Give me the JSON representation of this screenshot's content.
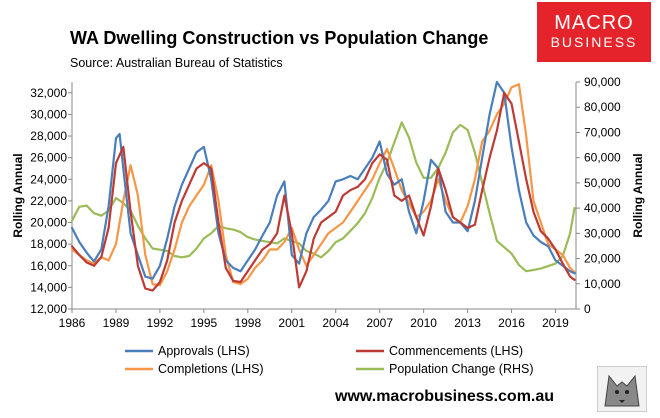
{
  "header": {
    "title": "WA Dwelling Construction vs Population Change",
    "source": "Source: Australian Bureau of Statistics"
  },
  "logo": {
    "line1": "MACRO",
    "line2": "BUSINESS"
  },
  "footer": {
    "url": "www.macrobusiness.com.au"
  },
  "colors": {
    "approvals": "#4a7ebb",
    "commencements": "#be3a34",
    "completions": "#f79646",
    "population": "#9bbb59",
    "logo_bg": "#e4232a"
  },
  "chart_data": {
    "type": "line",
    "title": "WA Dwelling Construction vs Population Change",
    "xlabel": "",
    "ylabel_left": "Rolling Annual",
    "ylabel_right": "Rolling Annual",
    "xlim": [
      1986,
      2020.4
    ],
    "ylim_left": [
      12000,
      33000
    ],
    "ylim_right": [
      0,
      90000
    ],
    "x_ticks": [
      "1986",
      "1989",
      "1992",
      "1995",
      "1998",
      "2001",
      "2004",
      "2007",
      "2010",
      "2013",
      "2016",
      "2019"
    ],
    "y_left_ticks": [
      "12,000",
      "14,000",
      "16,000",
      "18,000",
      "20,000",
      "22,000",
      "24,000",
      "26,000",
      "28,000",
      "30,000",
      "32,000"
    ],
    "y_right_ticks": [
      "0",
      "10,000",
      "20,000",
      "30,000",
      "40,000",
      "50,000",
      "60,000",
      "70,000",
      "80,000",
      "90,000"
    ],
    "grid": false,
    "legend_position": "bottom",
    "series": [
      {
        "name": "Approvals (LHS)",
        "axis": "left",
        "x": [
          1986,
          1986.5,
          1987,
          1987.5,
          1988,
          1988.5,
          1989,
          1989.25,
          1989.5,
          1990,
          1990.5,
          1991,
          1991.5,
          1992,
          1992.5,
          1993,
          1993.5,
          1994,
          1994.5,
          1995,
          1995.5,
          1996,
          1996.5,
          1997,
          1997.5,
          1998,
          1998.5,
          1999,
          1999.5,
          2000,
          2000.5,
          2001,
          2001.5,
          2002,
          2002.5,
          2003,
          2003.5,
          2004,
          2004.5,
          2005,
          2005.5,
          2006,
          2006.5,
          2007,
          2007.5,
          2008,
          2008.5,
          2009,
          2009.5,
          2010,
          2010.5,
          2011,
          2011.5,
          2012,
          2012.5,
          2013,
          2013.5,
          2014,
          2014.5,
          2015,
          2015.5,
          2016,
          2016.5,
          2017,
          2017.5,
          2018,
          2018.5,
          2019,
          2019.5,
          2020,
          2020.3
        ],
        "y": [
          19500,
          18200,
          17200,
          16400,
          17500,
          21500,
          27800,
          28200,
          25000,
          19000,
          17000,
          15000,
          14800,
          16000,
          18500,
          21500,
          23500,
          25000,
          26500,
          27000,
          24000,
          19000,
          16500,
          15800,
          15500,
          16500,
          17500,
          18800,
          20000,
          22500,
          23800,
          17000,
          16200,
          19000,
          20500,
          21200,
          22000,
          23800,
          24000,
          24300,
          24000,
          25000,
          26000,
          27500,
          24500,
          23500,
          24000,
          21000,
          19000,
          22000,
          25800,
          25000,
          21000,
          20000,
          20000,
          19200,
          22000,
          26000,
          30000,
          33000,
          32000,
          27000,
          23000,
          20000,
          18800,
          18200,
          17800,
          16500,
          16000,
          15500,
          15300
        ]
      },
      {
        "name": "Commencements (LHS)",
        "axis": "left",
        "x": [
          1986,
          1986.5,
          1987,
          1987.5,
          1988,
          1988.5,
          1989,
          1989.5,
          1990,
          1990.5,
          1991,
          1991.5,
          1992,
          1992.5,
          1993,
          1993.5,
          1994,
          1994.5,
          1995,
          1995.5,
          1996,
          1996.5,
          1997,
          1997.5,
          1998,
          1998.5,
          1999,
          1999.5,
          2000,
          2000.5,
          2001,
          2001.5,
          2002,
          2002.5,
          2003,
          2003.5,
          2004,
          2004.5,
          2005,
          2005.5,
          2006,
          2006.5,
          2007,
          2007.5,
          2008,
          2008.5,
          2009,
          2009.5,
          2010,
          2010.5,
          2011,
          2011.5,
          2012,
          2012.5,
          2013,
          2013.5,
          2014,
          2014.5,
          2015,
          2015.5,
          2016,
          2016.5,
          2017,
          2017.5,
          2018,
          2018.5,
          2019,
          2019.5,
          2020,
          2020.3
        ],
        "y": [
          17800,
          17000,
          16300,
          16000,
          16800,
          19500,
          25500,
          27000,
          21000,
          16000,
          13900,
          13700,
          14500,
          16500,
          20000,
          22000,
          23500,
          25000,
          25500,
          25000,
          20000,
          15800,
          14600,
          14500,
          15500,
          16500,
          17500,
          18000,
          19000,
          22500,
          19000,
          14000,
          15500,
          18500,
          20000,
          20500,
          21000,
          22500,
          23000,
          23300,
          24000,
          25500,
          26300,
          25800,
          22500,
          22000,
          22500,
          20500,
          18800,
          21500,
          25000,
          23000,
          20500,
          20000,
          19500,
          19800,
          23000,
          26000,
          28500,
          32000,
          31000,
          27500,
          24000,
          21000,
          19200,
          18500,
          17500,
          16200,
          15000,
          14700
        ]
      },
      {
        "name": "Completions (LHS)",
        "axis": "left",
        "x": [
          1986,
          1986.5,
          1987,
          1987.5,
          1988,
          1988.5,
          1989,
          1989.5,
          1990,
          1990.5,
          1991,
          1991.5,
          1992,
          1992.5,
          1993,
          1993.5,
          1994,
          1994.5,
          1995,
          1995.5,
          1996,
          1996.5,
          1997,
          1997.5,
          1998,
          1998.5,
          1999,
          1999.5,
          2000,
          2000.5,
          2001,
          2001.5,
          2002,
          2002.5,
          2003,
          2003.5,
          2004,
          2004.5,
          2005,
          2005.5,
          2006,
          2006.5,
          2007,
          2007.5,
          2008,
          2008.5,
          2009,
          2009.5,
          2010,
          2010.5,
          2011,
          2011.5,
          2012,
          2012.5,
          2013,
          2013.5,
          2014,
          2014.5,
          2015,
          2015.5,
          2016,
          2016.5,
          2017,
          2017.5,
          2018,
          2018.5,
          2019,
          2019.5,
          2020,
          2020.3
        ],
        "y": [
          17500,
          17000,
          16500,
          16200,
          16800,
          16500,
          18000,
          22000,
          25300,
          22500,
          17000,
          14300,
          14200,
          15500,
          17500,
          20000,
          21500,
          22500,
          23500,
          25300,
          22000,
          17000,
          14500,
          14300,
          14800,
          15800,
          16500,
          17500,
          17500,
          18200,
          19500,
          17500,
          16000,
          17000,
          18000,
          19000,
          19500,
          20000,
          21000,
          22000,
          23000,
          24000,
          25500,
          26800,
          25000,
          23000,
          21800,
          20500,
          21000,
          22000,
          24000,
          22000,
          20500,
          20000,
          21500,
          24000,
          27500,
          28500,
          30000,
          31000,
          32500,
          32800,
          28000,
          22000,
          20000,
          18000,
          17500,
          17000,
          15800,
          15400
        ]
      },
      {
        "name": "Population Change (RHS)",
        "axis": "right",
        "x": [
          1986,
          1986.5,
          1987,
          1987.5,
          1988,
          1988.5,
          1989,
          1989.5,
          1990,
          1990.5,
          1991,
          1991.5,
          1992,
          1992.5,
          1993,
          1993.5,
          1994,
          1994.5,
          1995,
          1995.5,
          1996,
          1996.5,
          1997,
          1997.5,
          1998,
          1998.5,
          1999,
          1999.5,
          2000,
          2000.5,
          2001,
          2001.5,
          2002,
          2002.5,
          2003,
          2003.5,
          2004,
          2004.5,
          2005,
          2005.5,
          2006,
          2006.5,
          2007,
          2007.5,
          2008,
          2008.5,
          2009,
          2009.5,
          2010,
          2010.5,
          2011,
          2011.5,
          2012,
          2012.5,
          2013,
          2013.5,
          2014,
          2014.5,
          2015,
          2015.5,
          2016,
          2016.5,
          2017,
          2017.5,
          2018,
          2018.5,
          2019,
          2019.5,
          2020,
          2020.3
        ],
        "y": [
          35000,
          40500,
          41000,
          38000,
          37000,
          39000,
          44000,
          42000,
          39000,
          33000,
          28000,
          24000,
          23500,
          23000,
          21000,
          20500,
          21000,
          24000,
          28000,
          30000,
          33000,
          32000,
          31500,
          30500,
          28500,
          27500,
          27000,
          26500,
          26000,
          28000,
          27000,
          26000,
          23000,
          22000,
          20500,
          23000,
          26500,
          28000,
          31000,
          34000,
          38000,
          44000,
          52000,
          58000,
          66000,
          74000,
          68000,
          58000,
          52000,
          52000,
          56000,
          62000,
          70000,
          73000,
          71000,
          62000,
          50000,
          38000,
          27000,
          24500,
          22000,
          17500,
          15000,
          15500,
          16000,
          17000,
          18000,
          21000,
          30000,
          40000
        ]
      }
    ]
  }
}
